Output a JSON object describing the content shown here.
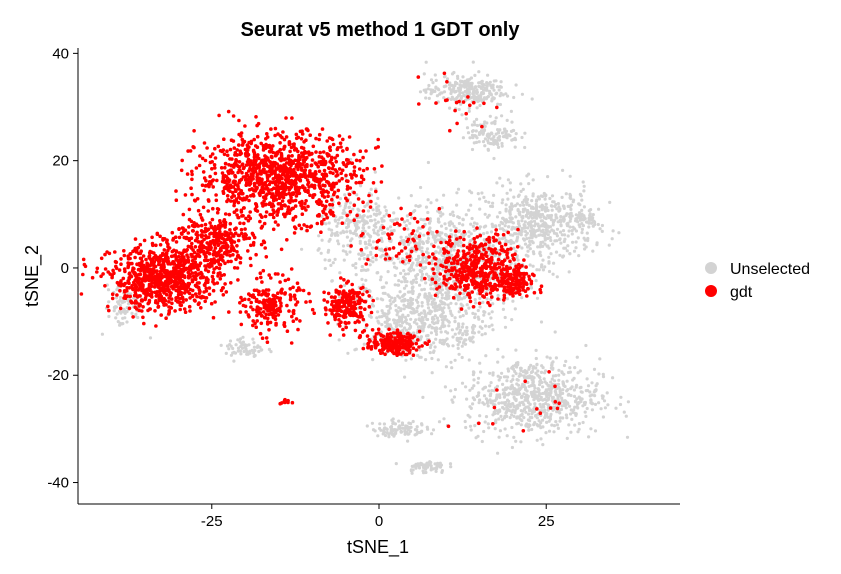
{
  "chart_data": {
    "type": "scatter",
    "title": "Seurat v5 method 1 GDT only",
    "xlabel": "tSNE_1",
    "ylabel": "tSNE_2",
    "xlim": [
      -45,
      45
    ],
    "ylim": [
      -44,
      41
    ],
    "xticks": [
      -25,
      0,
      25
    ],
    "yticks": [
      -40,
      -20,
      0,
      20,
      40
    ],
    "grid": false,
    "legend_position": "right",
    "series": [
      {
        "name": "Unselected",
        "color": "#d3d3d3",
        "clusters": [
          {
            "cx": 10,
            "cy": 0,
            "rx": 12,
            "ry": 12,
            "n": 900
          },
          {
            "cx": 24,
            "cy": 8,
            "rx": 8,
            "ry": 7,
            "n": 500
          },
          {
            "cx": 23,
            "cy": -24,
            "rx": 10,
            "ry": 7,
            "n": 700
          },
          {
            "cx": 13,
            "cy": 33,
            "rx": 6,
            "ry": 3,
            "n": 250
          },
          {
            "cx": 17,
            "cy": 25,
            "rx": 4,
            "ry": 3,
            "n": 120
          },
          {
            "cx": 3,
            "cy": -30,
            "rx": 4,
            "ry": 1.5,
            "n": 90
          },
          {
            "cx": 7,
            "cy": -37,
            "rx": 3,
            "ry": 1.2,
            "n": 60
          },
          {
            "cx": -20,
            "cy": -15,
            "rx": 3,
            "ry": 2,
            "n": 60
          },
          {
            "cx": -3,
            "cy": 7,
            "rx": 6,
            "ry": 8,
            "n": 250
          },
          {
            "cx": 5,
            "cy": -10,
            "rx": 8,
            "ry": 6,
            "n": 300
          },
          {
            "cx": -38,
            "cy": -7,
            "rx": 3,
            "ry": 4,
            "n": 80
          },
          {
            "cx": 31,
            "cy": 9,
            "rx": 2,
            "ry": 1.5,
            "n": 40
          },
          {
            "cx": 12,
            "cy": -13,
            "rx": 3,
            "ry": 3,
            "n": 50
          }
        ]
      },
      {
        "name": "gdt",
        "color": "#ff0000",
        "clusters": [
          {
            "cx": -15,
            "cy": 17,
            "rx": 12,
            "ry": 8,
            "n": 1100
          },
          {
            "cx": -32,
            "cy": -2,
            "rx": 8,
            "ry": 6,
            "n": 800
          },
          {
            "cx": -25,
            "cy": 5,
            "rx": 6,
            "ry": 5,
            "n": 300
          },
          {
            "cx": -16,
            "cy": -7,
            "rx": 4,
            "ry": 5,
            "n": 200
          },
          {
            "cx": -5,
            "cy": -7,
            "rx": 3.5,
            "ry": 4,
            "n": 200
          },
          {
            "cx": 2,
            "cy": -14,
            "rx": 4,
            "ry": 2,
            "n": 200
          },
          {
            "cx": 15,
            "cy": 0,
            "rx": 6,
            "ry": 6,
            "n": 450
          },
          {
            "cx": 20,
            "cy": -3,
            "rx": 3,
            "ry": 3,
            "n": 120
          },
          {
            "cx": -14,
            "cy": -25,
            "rx": 0.8,
            "ry": 0.6,
            "n": 12
          },
          {
            "cx": 3,
            "cy": 5,
            "rx": 6,
            "ry": 6,
            "n": 60
          },
          {
            "cx": 12,
            "cy": 31,
            "rx": 5,
            "ry": 5,
            "n": 20
          },
          {
            "cx": 22,
            "cy": -25,
            "rx": 7,
            "ry": 6,
            "n": 15
          }
        ]
      }
    ]
  }
}
